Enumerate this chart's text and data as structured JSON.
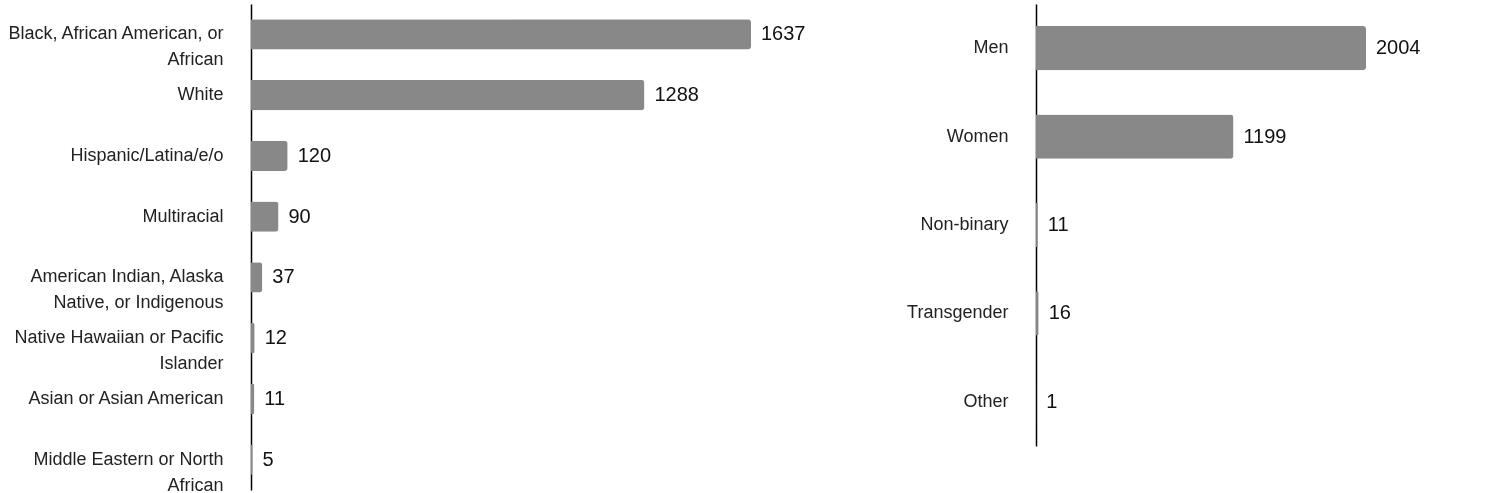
{
  "chart_data": [
    {
      "type": "bar",
      "orientation": "horizontal",
      "data_labels": true,
      "categories": [
        "Black, African American, or African",
        "White",
        "Hispanic/Latina/e/o",
        "Multiracial",
        "American Indian, Alaska Native, or Indigenous",
        "Native Hawaiian or Pacific Islander",
        "Asian or Asian American",
        "Middle Eastern or North African"
      ],
      "values": [
        1637,
        1288,
        120,
        90,
        37,
        12,
        11,
        5
      ],
      "color": "#888888"
    },
    {
      "type": "bar",
      "orientation": "horizontal",
      "data_labels": true,
      "categories": [
        "Men",
        "Women",
        "Non-binary",
        "Transgender",
        "Other"
      ],
      "values": [
        2004,
        1199,
        11,
        16,
        1
      ],
      "color": "#888888"
    }
  ]
}
